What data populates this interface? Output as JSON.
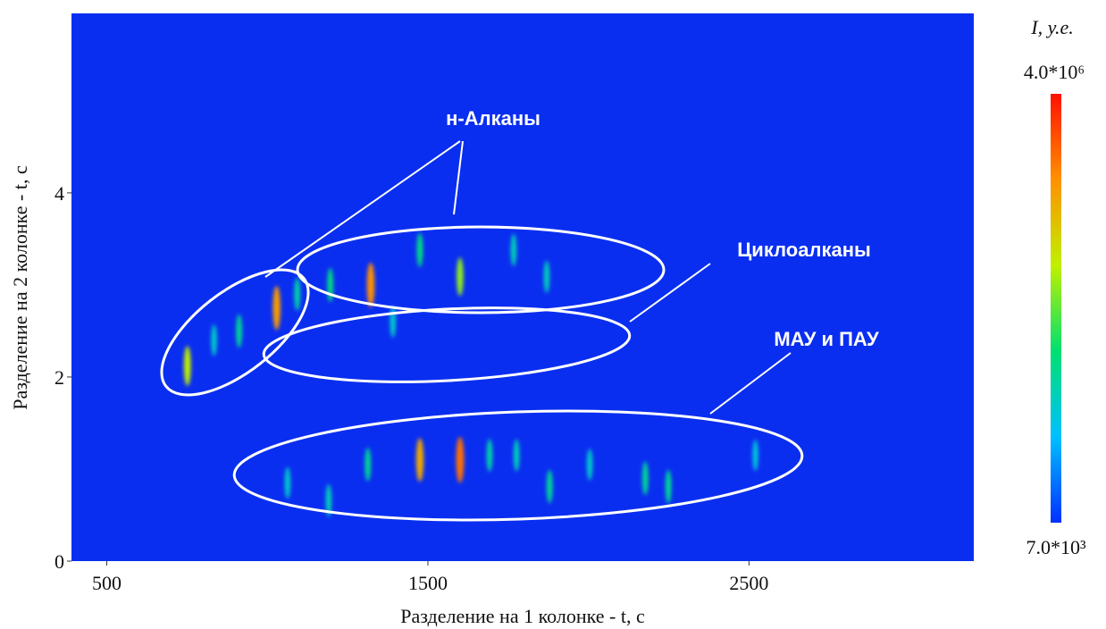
{
  "chart_data": {
    "type": "heatmap",
    "x_label": "Разделение на 1 колонке - t, с",
    "y_label": "Разделение на 2 колонке - t, с",
    "xlim": [
      390,
      3200
    ],
    "ylim": [
      0,
      5.95
    ],
    "xticks": [
      500,
      1500,
      2500
    ],
    "yticks": [
      0,
      2,
      4
    ],
    "colorbar_title": "I, у.е.",
    "clim": [
      {
        "value": 7000,
        "label": "7.0*10³"
      },
      {
        "value": 4000000,
        "label": "4.0*10⁶"
      }
    ],
    "colormap": "jet",
    "annotations": [
      "н-Алканы",
      "Циклоалканы",
      "МАУ и ПАУ"
    ],
    "peaks": {
      "x": [
        751,
        912,
        1029,
        1093,
        1196,
        1322,
        1475,
        1600,
        1767,
        1870,
        1475,
        1600,
        1313,
        1692,
        1776,
        1879,
        2177,
        2249,
        1191,
        1063,
        2520,
        2004,
        1391,
        834
      ],
      "y": [
        2.12,
        2.5,
        2.75,
        2.9,
        3.0,
        3.0,
        3.38,
        3.09,
        3.38,
        3.09,
        1.1,
        1.1,
        1.05,
        1.15,
        1.15,
        0.81,
        0.9,
        0.81,
        0.66,
        0.85,
        1.15,
        1.05,
        2.6,
        2.4
      ],
      "values": [
        1800000,
        800000,
        2500000,
        700000,
        900000,
        2600000,
        900000,
        1600000,
        600000,
        600000,
        2400000,
        2800000,
        800000,
        700000,
        600000,
        800000,
        800000,
        800000,
        600000,
        500000,
        400000,
        500000,
        500000,
        500000
      ]
    }
  }
}
